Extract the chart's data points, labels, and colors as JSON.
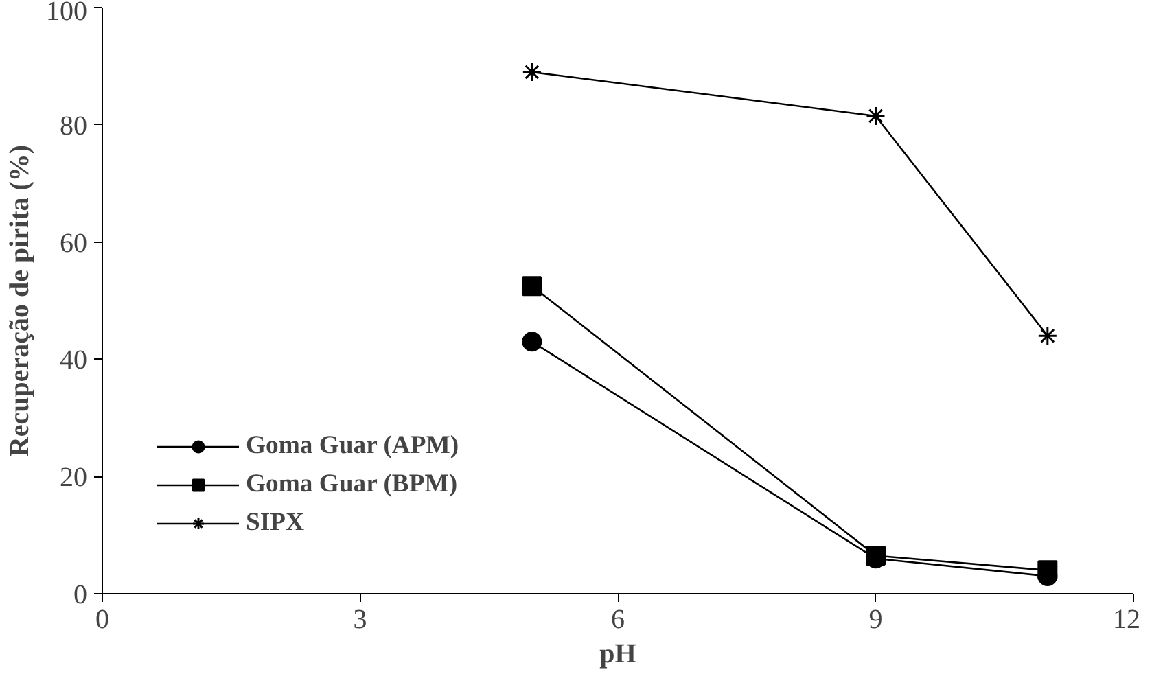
{
  "chart_data": {
    "type": "line",
    "xlabel": "pH",
    "ylabel": "Recuperação de pirita (%)",
    "x": [
      5,
      9,
      11
    ],
    "xlim": [
      0,
      12
    ],
    "xticks": [
      0,
      3,
      6,
      9,
      12
    ],
    "ylim": [
      0,
      100
    ],
    "yticks": [
      0,
      20,
      40,
      60,
      80,
      100
    ],
    "series": [
      {
        "name": "Goma Guar (APM)",
        "color": "#000000",
        "marker": "circle",
        "values": [
          43,
          6,
          3
        ]
      },
      {
        "name": "Goma Guar (BPM)",
        "color": "#000000",
        "marker": "square",
        "values": [
          52.5,
          6.5,
          4
        ]
      },
      {
        "name": "SIPX",
        "color": "#000000",
        "marker": "cross",
        "values": [
          89,
          81.5,
          44
        ]
      }
    ],
    "grid": false,
    "legend": "bottom left",
    "line_style": "solid"
  }
}
